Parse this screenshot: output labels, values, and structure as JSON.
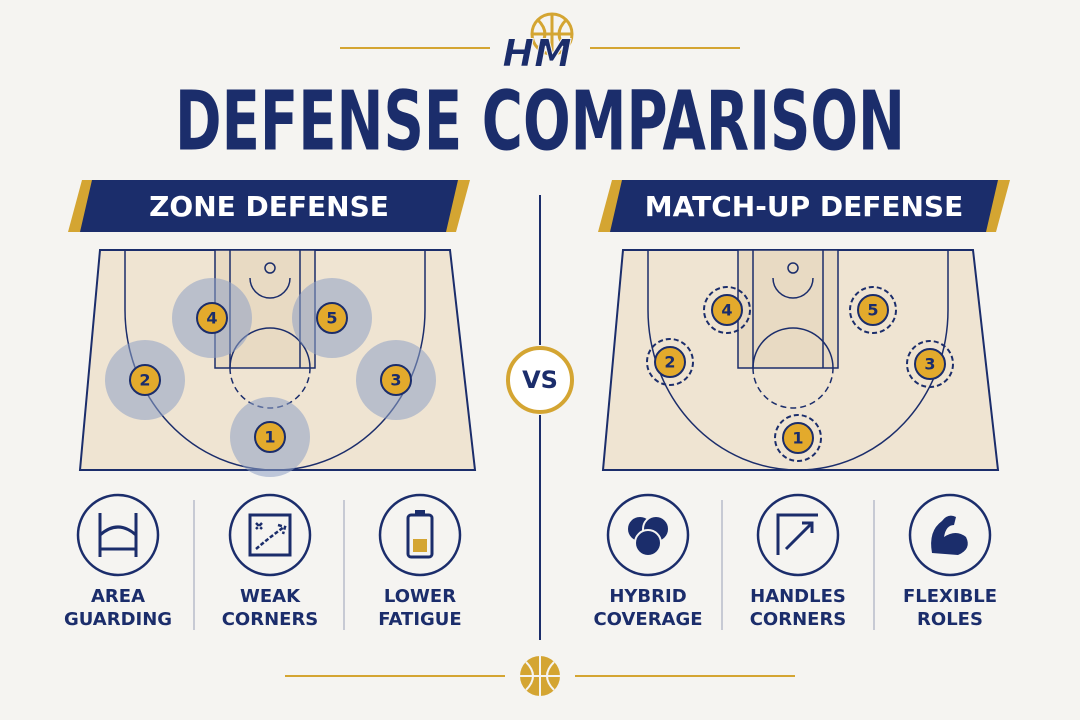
{
  "logo": "HM",
  "title": "DEFENSE COMPARISON",
  "vs": "VS",
  "panels": [
    {
      "heading": "ZONE DEFENSE",
      "players": [
        "4",
        "5",
        "2",
        "3",
        "1"
      ],
      "features": [
        {
          "lines": [
            "AREA",
            "GUARDING"
          ]
        },
        {
          "lines": [
            "WEAK",
            "CORNERS"
          ]
        },
        {
          "lines": [
            "LOWER",
            "FATIGUE"
          ]
        }
      ]
    },
    {
      "heading": "MATCH-UP DEFENSE",
      "players": [
        "4",
        "5",
        "2",
        "3",
        "1"
      ],
      "features": [
        {
          "lines": [
            "HYBRID",
            "COVERAGE"
          ]
        },
        {
          "lines": [
            "HANDLES",
            "CORNERS"
          ]
        },
        {
          "lines": [
            "FLEXIBLE",
            "ROLES"
          ]
        }
      ]
    }
  ]
}
